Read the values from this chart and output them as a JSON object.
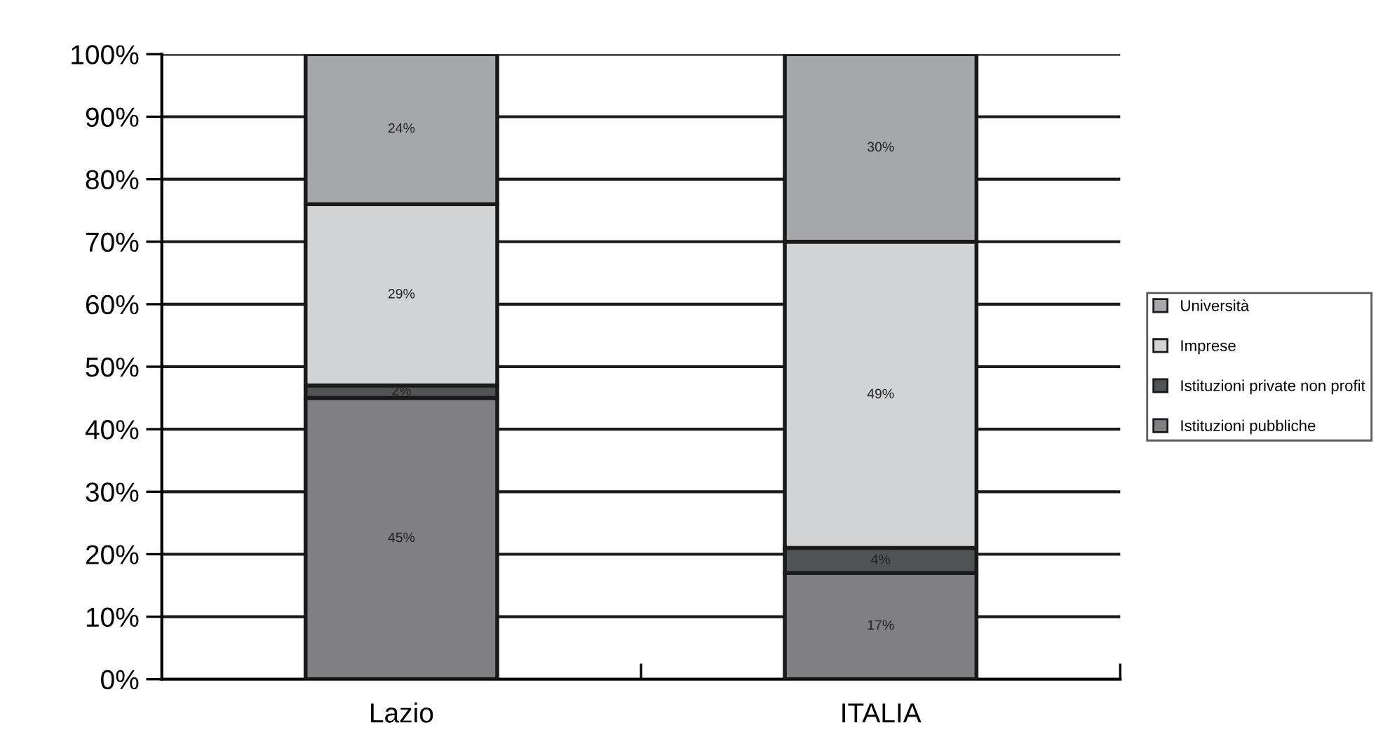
{
  "chart_data": {
    "type": "bar",
    "stacked": true,
    "categories": [
      "Lazio",
      "ITALIA"
    ],
    "series": [
      {
        "name": "Istituzioni pubbliche",
        "color": "#808084",
        "values": [
          45,
          17
        ],
        "value_labels": [
          "45%",
          "17%"
        ]
      },
      {
        "name": "Istituzioni private non profit",
        "color": "#505354",
        "values": [
          2,
          4
        ],
        "value_labels": [
          "2%",
          "4%"
        ]
      },
      {
        "name": "Imprese",
        "color": "#d2d3d5",
        "values": [
          29,
          49
        ],
        "value_labels": [
          "29%",
          "49%"
        ]
      },
      {
        "name": "Università",
        "color": "#a6a7aa",
        "values": [
          24,
          30
        ],
        "value_labels": [
          "24%",
          "30%"
        ]
      }
    ],
    "ylim": [
      0,
      100
    ],
    "yticks": [
      {
        "value": 0,
        "label": "0%"
      },
      {
        "value": 10,
        "label": "10%"
      },
      {
        "value": 20,
        "label": "20%"
      },
      {
        "value": 30,
        "label": "30%"
      },
      {
        "value": 40,
        "label": "40%"
      },
      {
        "value": 50,
        "label": "50%"
      },
      {
        "value": 60,
        "label": "60%"
      },
      {
        "value": 70,
        "label": "70%"
      },
      {
        "value": 80,
        "label": "80%"
      },
      {
        "value": 90,
        "label": "90%"
      },
      {
        "value": 100,
        "label": "100%"
      }
    ],
    "grid": "y",
    "legend": "right"
  }
}
